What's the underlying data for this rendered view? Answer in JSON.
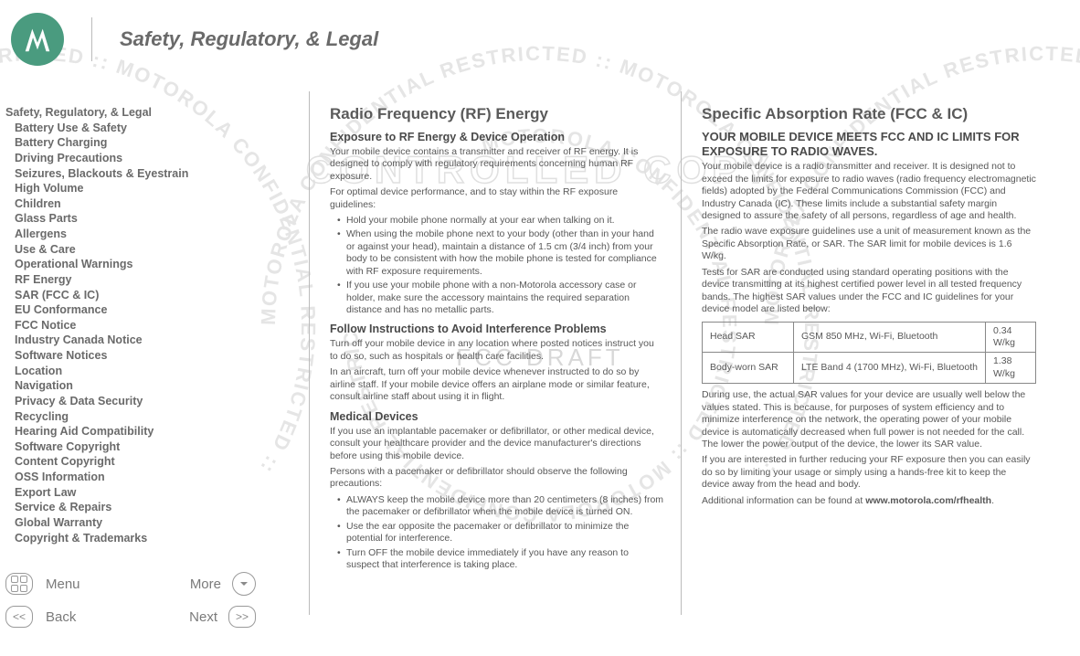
{
  "header": {
    "title": "Safety, Regulatory, & Legal"
  },
  "toc": {
    "head": "Safety, Regulatory, & Legal",
    "items": [
      "Battery Use & Safety",
      "Battery Charging",
      "Driving Precautions",
      "Seizures, Blackouts & Eyestrain",
      "High Volume",
      "Children",
      "Glass Parts",
      "Allergens",
      "Use & Care",
      "Operational Warnings",
      "RF Energy",
      "SAR (FCC & IC)",
      "EU Conformance",
      "FCC Notice",
      "Industry Canada Notice",
      "Software Notices",
      "Location",
      "Navigation",
      "Privacy & Data Security",
      "Recycling",
      "Hearing Aid Compatibility",
      "Software Copyright",
      "Content Copyright",
      "OSS Information",
      "Export Law",
      "Service & Repairs",
      "Global Warranty",
      "Copyright & Trademarks"
    ]
  },
  "nav": {
    "menu": "Menu",
    "more": "More",
    "back": "Back",
    "next": "Next"
  },
  "col1": {
    "h2": "Radio Frequency (RF) Energy",
    "s1_h": "Exposure to RF Energy & Device Operation",
    "s1_p1": "Your mobile device contains a transmitter and receiver of RF energy. It is designed to comply with regulatory requirements concerning human RF exposure.",
    "s1_p2": "For optimal device performance, and to stay within the RF exposure guidelines:",
    "s1_li1": "Hold your mobile phone normally at your ear when talking on it.",
    "s1_li2": "When using the mobile phone next to your body (other than in your hand or against your head), maintain a distance of 1.5 cm (3/4 inch) from your body to be consistent with how the mobile phone is tested for compliance with RF exposure requirements.",
    "s1_li3": "If you use your mobile phone with a non-Motorola accessory case or holder, make sure the accessory maintains the required separation distance and has no metallic parts.",
    "s2_h": "Follow Instructions to Avoid Interference Problems",
    "s2_p1": "Turn off your mobile device in any location where posted notices instruct you to do so, such as hospitals or health care facilities.",
    "s2_p2": "In an aircraft, turn off your mobile device whenever instructed to do so by airline staff. If your mobile device offers an airplane mode or similar feature, consult airline staff about using it in flight.",
    "s3_h": "Medical Devices",
    "s3_p1": "If you use an implantable pacemaker or defibrillator, or other medical device, consult your healthcare provider and the device manufacturer's directions before using this mobile device.",
    "s3_p2": "Persons with a pacemaker or defibrillator should observe the following precautions:",
    "s3_li1": "ALWAYS keep the mobile device more than 20 centimeters (8 inches) from the pacemaker or defibrillator when the mobile device is turned ON.",
    "s3_li2": "Use the ear opposite the pacemaker or defibrillator to minimize the potential for interference.",
    "s3_li3": "Turn OFF the mobile device immediately if you have any reason to suspect that interference is taking place."
  },
  "col2": {
    "h2": "Specific Absorption Rate (FCC & IC)",
    "caps": "YOUR MOBILE DEVICE MEETS FCC AND IC LIMITS FOR EXPOSURE TO RADIO WAVES.",
    "p1": "Your mobile device is a radio transmitter and receiver. It is designed not to exceed the limits for exposure to radio waves (radio frequency electromagnetic fields) adopted by the Federal Communications Commission (FCC) and Industry Canada (IC). These limits include a substantial safety margin designed to assure the safety of all persons, regardless of age and health.",
    "p2": "The radio wave exposure guidelines use a unit of measurement known as the Specific Absorption Rate, or SAR. The SAR limit for mobile devices is 1.6 W/kg.",
    "p3": "Tests for SAR are conducted using standard operating positions with the device transmitting at its highest certified power level in all tested frequency bands. The highest SAR values under the FCC and IC guidelines for your device model are listed below:",
    "table": {
      "r1c1": "Head SAR",
      "r1c2": "GSM 850 MHz, Wi-Fi, Bluetooth",
      "r1c3": "0.34 W/kg",
      "r2c1": "Body-worn SAR",
      "r2c2": "LTE Band 4 (1700 MHz), Wi-Fi, Bluetooth",
      "r2c3": "1.38 W/kg"
    },
    "p4": "During use, the actual SAR values for your device are usually well below the values stated. This is because, for purposes of system efficiency and to minimize interference on the network, the operating power of your mobile device is automatically decreased when full power is not needed for the call. The lower the power output of the device, the lower its SAR value.",
    "p5": "If you are interested in further reducing your RF exposure then you can easily do so by limiting your usage or simply using a hands-free kit to keep the device away from the head and body.",
    "p6a": "Additional information can be found at ",
    "p6b": "www.motorola.com/rfhealth",
    "p6c": "."
  },
  "watermark": {
    "ring_text": "MOTOROLA CONFIDENTIAL RESTRICTED :: MOTOROLA CONFIDENTIAL RESTRICTED :: ",
    "center1": "CONTROLLED COPY",
    "center2": "FCC DRAFT",
    "color": "#e5e5e5"
  }
}
